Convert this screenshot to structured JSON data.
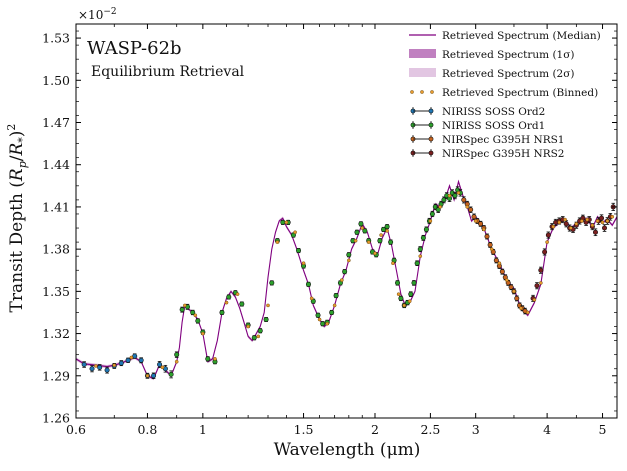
{
  "chart_data": {
    "type": "line",
    "title": "WASP-62b",
    "subtitle": "Equilibrium Retrieval",
    "xlabel": "Wavelength (μm)",
    "ylabel_parts": [
      "Transit Depth (",
      "R",
      "p",
      "/",
      "R",
      "*",
      ")",
      "2"
    ],
    "y_multiplier": "×10",
    "y_multiplier_exp": "−2",
    "x_scale": "log",
    "xlim": [
      0.6,
      5.3
    ],
    "ylim": [
      1.26,
      1.54
    ],
    "x_ticks": [
      0.6,
      0.8,
      1,
      1.5,
      2,
      2.5,
      3,
      4,
      5
    ],
    "x_tick_labels": [
      "0.6",
      "0.8",
      "1",
      "1.5",
      "2",
      "2.5",
      "3",
      "4",
      "5"
    ],
    "y_ticks": [
      1.26,
      1.29,
      1.32,
      1.35,
      1.38,
      1.41,
      1.44,
      1.47,
      1.5,
      1.53
    ],
    "y_tick_labels": [
      "1.26",
      "1.29",
      "1.32",
      "1.35",
      "1.38",
      "1.41",
      "1.44",
      "1.47",
      "1.50",
      "1.53"
    ],
    "grid": false,
    "legend_position": "top-right",
    "legend": [
      {
        "label": "Retrieved Spectrum (Median)",
        "kind": "line",
        "color": "#800080"
      },
      {
        "label": "Retrieved Spectrum (1σ)",
        "kind": "band",
        "color": "#c080c0"
      },
      {
        "label": "Retrieved Spectrum (2σ)",
        "kind": "band",
        "color": "#e2c6e2"
      },
      {
        "label": "Retrieved Spectrum (Binned)",
        "kind": "dots",
        "color": "#e69a2e"
      },
      {
        "label": "NIRISS SOSS Ord2",
        "kind": "errorbar",
        "color": "#1f77b4"
      },
      {
        "label": "NIRISS SOSS Ord1",
        "kind": "errorbar",
        "color": "#2ca02c"
      },
      {
        "label": "NIRSpec G395H NRS1",
        "kind": "errorbar",
        "color": "#c8641e"
      },
      {
        "label": "NIRSpec G395H NRS2",
        "kind": "errorbar",
        "color": "#7b1f1f"
      }
    ],
    "model_median": {
      "x": [
        0.6,
        0.62,
        0.65,
        0.68,
        0.7,
        0.72,
        0.74,
        0.76,
        0.78,
        0.8,
        0.82,
        0.84,
        0.86,
        0.88,
        0.9,
        0.91,
        0.92,
        0.93,
        0.94,
        0.96,
        0.98,
        1.0,
        1.02,
        1.04,
        1.06,
        1.08,
        1.1,
        1.12,
        1.14,
        1.16,
        1.18,
        1.2,
        1.22,
        1.24,
        1.26,
        1.28,
        1.3,
        1.32,
        1.34,
        1.36,
        1.38,
        1.4,
        1.43,
        1.46,
        1.5,
        1.53,
        1.56,
        1.6,
        1.63,
        1.66,
        1.7,
        1.74,
        1.78,
        1.82,
        1.86,
        1.9,
        1.94,
        1.98,
        2.02,
        2.06,
        2.1,
        2.14,
        2.18,
        2.22,
        2.26,
        2.3,
        2.35,
        2.4,
        2.45,
        2.5,
        2.55,
        2.6,
        2.65,
        2.7,
        2.75,
        2.8,
        2.85,
        2.9,
        2.95,
        3.0,
        3.1,
        3.2,
        3.3,
        3.4,
        3.5,
        3.6,
        3.7,
        3.8,
        3.9,
        4.0,
        4.1,
        4.2,
        4.3,
        4.4,
        4.5,
        4.6,
        4.7,
        4.8,
        4.9,
        5.0,
        5.1,
        5.2,
        5.3
      ],
      "y": [
        1.302,
        1.2985,
        1.2975,
        1.2965,
        1.2975,
        1.299,
        1.301,
        1.303,
        1.3,
        1.29,
        1.288,
        1.298,
        1.294,
        1.29,
        1.3,
        1.31,
        1.328,
        1.34,
        1.338,
        1.335,
        1.33,
        1.32,
        1.3,
        1.302,
        1.315,
        1.335,
        1.345,
        1.35,
        1.346,
        1.338,
        1.328,
        1.318,
        1.315,
        1.32,
        1.325,
        1.335,
        1.36,
        1.38,
        1.392,
        1.4,
        1.402,
        1.396,
        1.39,
        1.38,
        1.365,
        1.355,
        1.34,
        1.33,
        1.325,
        1.328,
        1.34,
        1.355,
        1.365,
        1.38,
        1.388,
        1.398,
        1.392,
        1.38,
        1.376,
        1.388,
        1.395,
        1.382,
        1.365,
        1.348,
        1.34,
        1.342,
        1.35,
        1.375,
        1.39,
        1.4,
        1.412,
        1.41,
        1.415,
        1.425,
        1.415,
        1.428,
        1.418,
        1.41,
        1.4,
        1.403,
        1.395,
        1.38,
        1.37,
        1.358,
        1.352,
        1.338,
        1.333,
        1.342,
        1.355,
        1.385,
        1.395,
        1.399,
        1.401,
        1.395,
        1.398,
        1.4,
        1.402,
        1.395,
        1.403,
        1.399,
        1.401,
        1.397,
        1.403
      ]
    },
    "binned_points": {
      "x": [
        0.65,
        0.7,
        0.75,
        0.8,
        0.85,
        0.9,
        0.93,
        0.97,
        1.0,
        1.05,
        1.1,
        1.15,
        1.2,
        1.25,
        1.3,
        1.35,
        1.4,
        1.45,
        1.5,
        1.55,
        1.6,
        1.65,
        1.7,
        1.75,
        1.8,
        1.85,
        1.9,
        1.95,
        2.0,
        2.05,
        2.1,
        2.15,
        2.2,
        2.25,
        2.3,
        2.4,
        2.5,
        2.6,
        2.7,
        2.8,
        2.9,
        3.0,
        3.1,
        3.2,
        3.3,
        3.4,
        3.5,
        3.6,
        3.7,
        3.8,
        3.9,
        4.0,
        4.1,
        4.2,
        4.3,
        4.4,
        4.5,
        4.6,
        4.7,
        4.8,
        4.9,
        5.0,
        5.1,
        5.2
      ],
      "y": [
        1.297,
        1.2975,
        1.303,
        1.29,
        1.296,
        1.3,
        1.34,
        1.333,
        1.32,
        1.302,
        1.342,
        1.348,
        1.325,
        1.318,
        1.34,
        1.385,
        1.399,
        1.392,
        1.37,
        1.345,
        1.33,
        1.327,
        1.34,
        1.358,
        1.372,
        1.386,
        1.395,
        1.385,
        1.377,
        1.39,
        1.393,
        1.37,
        1.348,
        1.34,
        1.343,
        1.375,
        1.4,
        1.41,
        1.418,
        1.42,
        1.41,
        1.4,
        1.394,
        1.38,
        1.37,
        1.358,
        1.35,
        1.338,
        1.335,
        1.344,
        1.356,
        1.385,
        1.396,
        1.399,
        1.401,
        1.395,
        1.398,
        1.4,
        1.401,
        1.397,
        1.4,
        1.399,
        1.4,
        1.403
      ]
    },
    "series": [
      {
        "name": "NIRISS SOSS Ord2",
        "x": [
          0.62,
          0.64,
          0.66,
          0.68,
          0.7,
          0.72,
          0.74,
          0.76,
          0.78,
          0.8,
          0.82,
          0.84,
          0.86
        ],
        "y": [
          1.298,
          1.295,
          1.296,
          1.294,
          1.297,
          1.299,
          1.301,
          1.304,
          1.301,
          1.29,
          1.29,
          1.298,
          1.295
        ],
        "err": [
          0.002,
          0.0022,
          0.002,
          0.0021,
          0.0018,
          0.0018,
          0.0016,
          0.0016,
          0.0018,
          0.0018,
          0.002,
          0.0022,
          0.0024
        ]
      },
      {
        "name": "NIRISS SOSS Ord1",
        "x": [
          0.88,
          0.9,
          0.92,
          0.94,
          0.96,
          0.98,
          1.0,
          1.02,
          1.05,
          1.08,
          1.11,
          1.14,
          1.17,
          1.2,
          1.23,
          1.26,
          1.29,
          1.32,
          1.35,
          1.38,
          1.41,
          1.44,
          1.47,
          1.5,
          1.53,
          1.56,
          1.59,
          1.62,
          1.65,
          1.68,
          1.71,
          1.74,
          1.77,
          1.8,
          1.83,
          1.86,
          1.89,
          1.92,
          1.95,
          1.98,
          2.01,
          2.04,
          2.07,
          2.1,
          2.13,
          2.16,
          2.19,
          2.22,
          2.25,
          2.28,
          2.31,
          2.34,
          2.37,
          2.4,
          2.43,
          2.46,
          2.49,
          2.52,
          2.55,
          2.58,
          2.61,
          2.64,
          2.67,
          2.7,
          2.73,
          2.76,
          2.79,
          2.82
        ],
        "y": [
          1.291,
          1.305,
          1.337,
          1.339,
          1.335,
          1.329,
          1.321,
          1.302,
          1.3,
          1.335,
          1.346,
          1.349,
          1.341,
          1.326,
          1.317,
          1.322,
          1.33,
          1.356,
          1.386,
          1.399,
          1.399,
          1.39,
          1.379,
          1.368,
          1.355,
          1.343,
          1.333,
          1.327,
          1.328,
          1.335,
          1.347,
          1.356,
          1.364,
          1.376,
          1.386,
          1.392,
          1.398,
          1.393,
          1.386,
          1.378,
          1.376,
          1.386,
          1.394,
          1.396,
          1.385,
          1.372,
          1.356,
          1.345,
          1.34,
          1.342,
          1.348,
          1.356,
          1.37,
          1.38,
          1.388,
          1.394,
          1.4,
          1.405,
          1.41,
          1.408,
          1.412,
          1.415,
          1.418,
          1.416,
          1.42,
          1.418,
          1.422,
          1.42
        ],
        "err": [
          0.0025,
          0.002,
          0.0018,
          0.0018,
          0.0016,
          0.0016,
          0.0016,
          0.0016,
          0.0015,
          0.0015,
          0.0015,
          0.0015,
          0.0015,
          0.0015,
          0.0015,
          0.0015,
          0.0015,
          0.0015,
          0.0015,
          0.0015,
          0.0015,
          0.0015,
          0.0015,
          0.0015,
          0.0015,
          0.0015,
          0.0015,
          0.0015,
          0.0015,
          0.0015,
          0.0015,
          0.0015,
          0.0015,
          0.0015,
          0.0015,
          0.0015,
          0.0015,
          0.0015,
          0.0015,
          0.0015,
          0.0015,
          0.0015,
          0.0015,
          0.0015,
          0.0016,
          0.0016,
          0.0016,
          0.0016,
          0.0016,
          0.0016,
          0.0017,
          0.0017,
          0.0017,
          0.0018,
          0.0018,
          0.0018,
          0.0019,
          0.0019,
          0.002,
          0.002,
          0.002,
          0.0021,
          0.0021,
          0.0022,
          0.0022,
          0.0022,
          0.0023,
          0.0023
        ]
      },
      {
        "name": "NIRSpec G395H NRS1",
        "x": [
          2.86,
          2.9,
          2.94,
          2.98,
          3.02,
          3.06,
          3.1,
          3.14,
          3.18,
          3.22,
          3.26,
          3.3,
          3.34,
          3.38,
          3.42,
          3.46,
          3.5,
          3.54,
          3.58,
          3.62,
          3.66
        ],
        "y": [
          1.415,
          1.412,
          1.408,
          1.403,
          1.4,
          1.398,
          1.395,
          1.389,
          1.383,
          1.378,
          1.372,
          1.368,
          1.364,
          1.36,
          1.356,
          1.353,
          1.35,
          1.345,
          1.34,
          1.338,
          1.336
        ],
        "err": [
          0.0022,
          0.002,
          0.002,
          0.002,
          0.0018,
          0.0018,
          0.0018,
          0.0018,
          0.0018,
          0.0018,
          0.0018,
          0.0018,
          0.0018,
          0.0018,
          0.0018,
          0.0018,
          0.0018,
          0.0018,
          0.0018,
          0.0018,
          0.002
        ]
      },
      {
        "name": "NIRSpec G395H NRS2",
        "x": [
          3.78,
          3.84,
          3.9,
          3.96,
          4.02,
          4.08,
          4.14,
          4.2,
          4.26,
          4.32,
          4.38,
          4.44,
          4.5,
          4.56,
          4.62,
          4.68,
          4.74,
          4.8,
          4.86,
          4.92,
          4.98,
          5.04,
          5.1,
          5.16,
          5.22
        ],
        "y": [
          1.345,
          1.354,
          1.365,
          1.378,
          1.39,
          1.396,
          1.399,
          1.4,
          1.401,
          1.398,
          1.395,
          1.394,
          1.397,
          1.4,
          1.402,
          1.399,
          1.401,
          1.396,
          1.392,
          1.4,
          1.402,
          1.395,
          1.4,
          1.403,
          1.41
        ],
        "err": [
          0.0022,
          0.0022,
          0.0022,
          0.0022,
          0.0022,
          0.0022,
          0.0022,
          0.0022,
          0.0022,
          0.0022,
          0.0022,
          0.0022,
          0.0022,
          0.0022,
          0.0022,
          0.0022,
          0.0022,
          0.0022,
          0.0024,
          0.0024,
          0.0024,
          0.0024,
          0.0024,
          0.0024,
          0.0026
        ]
      }
    ]
  }
}
